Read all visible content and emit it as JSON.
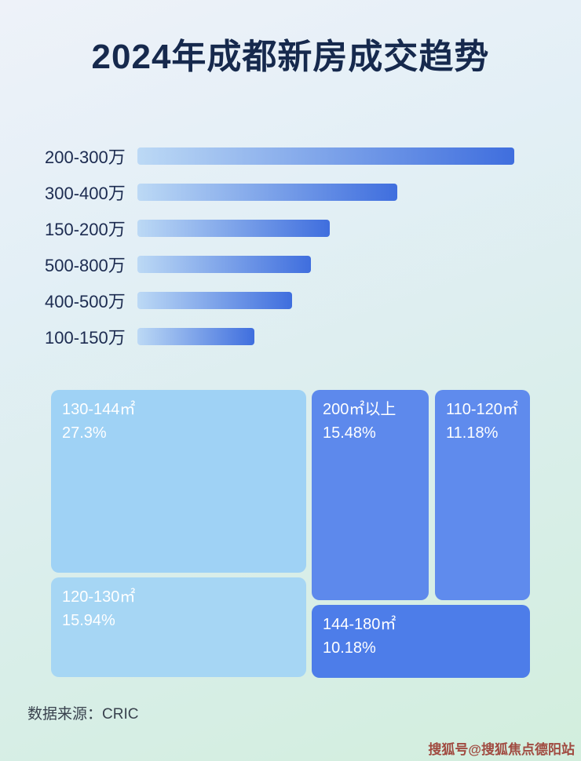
{
  "page": {
    "title": "2024年成都新房成交趋势",
    "source_label": "数据来源：CRIC",
    "watermark": "搜狐号@搜狐焦点德阳站",
    "title_color": "#16294d",
    "background_gradient": [
      "#eef2f9",
      "#d2eedd"
    ]
  },
  "chart_data": [
    {
      "type": "bar",
      "orientation": "horizontal",
      "title": "",
      "xlabel": "",
      "ylabel": "",
      "categories": [
        "200-300万",
        "300-400万",
        "150-200万",
        "500-800万",
        "400-500万",
        "100-150万"
      ],
      "relative_lengths_pct": [
        100,
        69,
        51,
        46,
        41,
        31
      ],
      "note": "No numeric axis, gridlines or data labels are shown in the image; bar lengths are estimated relative to the longest bar (200-300万 = 100).",
      "bar_gradient": [
        "#bcd9f5",
        "#3f6ede"
      ],
      "label_color": "#1c2b50",
      "legend": "none",
      "grid": false
    },
    {
      "type": "treemap",
      "title": "",
      "items": [
        {
          "label": "130-144㎡",
          "value_pct": 27.3,
          "display": "27.3%",
          "color": "#9fd2f5"
        },
        {
          "label": "120-130㎡",
          "value_pct": 15.94,
          "display": "15.94%",
          "color": "#a6d6f4"
        },
        {
          "label": "200㎡以上",
          "value_pct": 15.48,
          "display": "15.48%",
          "color": "#5d89ec"
        },
        {
          "label": "110-120㎡",
          "value_pct": 11.18,
          "display": "11.18%",
          "color": "#5f8bed"
        },
        {
          "label": "144-180㎡",
          "value_pct": 10.18,
          "display": "10.18%",
          "color": "#4d7de9"
        }
      ],
      "text_color": "#ffffff",
      "legend": "none"
    }
  ]
}
